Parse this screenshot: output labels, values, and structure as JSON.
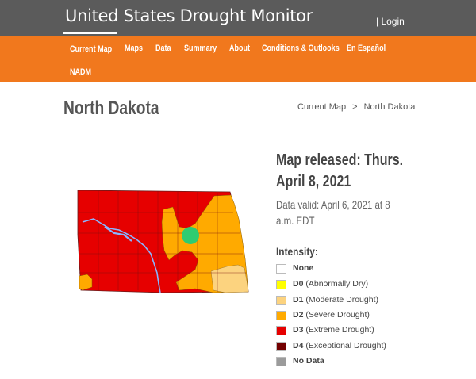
{
  "header": {
    "site_title": "United States Drought Monitor",
    "login_label": "| Login"
  },
  "nav": {
    "items": [
      "Current Map",
      "Maps",
      "Data",
      "Summary",
      "About",
      "Conditions & Outlooks",
      "En Español",
      "NADM"
    ]
  },
  "page": {
    "title": "North Dakota",
    "breadcrumb": [
      "Current Map",
      ">",
      "North Dakota"
    ]
  },
  "map_info": {
    "released": "Map released: Thurs. April 8, 2021",
    "valid": "Data valid: April 6, 2021 at 8 a.m. EDT",
    "intensity_title": "Intensity:"
  },
  "legend": [
    {
      "code": "None",
      "desc": "",
      "color": "#ffffff"
    },
    {
      "code": "D0",
      "desc": " (Abnormally Dry)",
      "color": "#ffff00"
    },
    {
      "code": "D1",
      "desc": " (Moderate Drought)",
      "color": "#fcd37f"
    },
    {
      "code": "D2",
      "desc": " (Severe Drought)",
      "color": "#ffaa00"
    },
    {
      "code": "D3",
      "desc": " (Extreme Drought)",
      "color": "#e60000"
    },
    {
      "code": "D4",
      "desc": " (Exceptional Drought)",
      "color": "#730000"
    },
    {
      "code": "No Data",
      "desc": "",
      "color": "#9b9b9b"
    }
  ],
  "colors": {
    "topbar": "#5b5b5b",
    "navbar": "#f1781d",
    "d1": "#fcd37f",
    "d2": "#ffaa00",
    "d3": "#e60000",
    "marker": "#2ecc71"
  }
}
